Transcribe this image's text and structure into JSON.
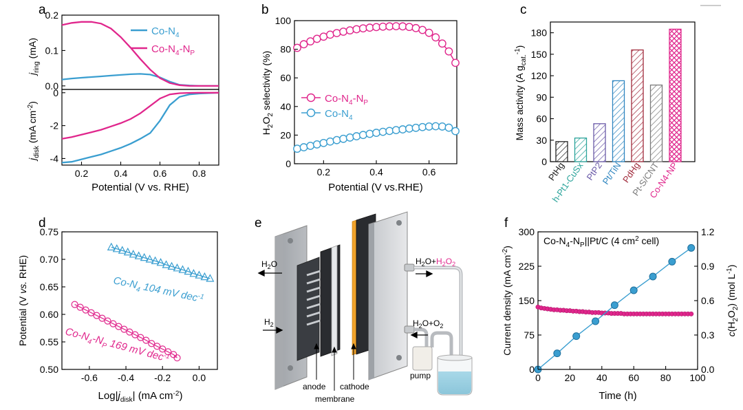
{
  "figure": {
    "panel_labels": [
      "a",
      "b",
      "c",
      "d",
      "e",
      "f"
    ]
  },
  "colors": {
    "co_n4": "#3a9ed0",
    "co_n4_np": "#e0268c",
    "axis": "#000000"
  },
  "chart_data": [
    {
      "id": "a-top",
      "type": "line",
      "ylabel": "j_ring (mA)",
      "ylim": [
        -0.01,
        0.2
      ],
      "xlim": [
        0.1,
        0.9
      ],
      "yticks": [
        0.0,
        0.1,
        0.2
      ],
      "legend": {
        "placement": "top-right"
      },
      "series": [
        {
          "name": "Co-N4",
          "color": "#3a9ed0",
          "x": [
            0.1,
            0.15,
            0.2,
            0.25,
            0.3,
            0.35,
            0.4,
            0.45,
            0.5,
            0.55,
            0.6,
            0.65,
            0.7,
            0.75,
            0.8,
            0.85,
            0.9
          ],
          "y": [
            0.018,
            0.021,
            0.023,
            0.025,
            0.027,
            0.029,
            0.031,
            0.033,
            0.034,
            0.032,
            0.024,
            0.012,
            0.003,
            0.001,
            0.0,
            0.0,
            0.0
          ]
        },
        {
          "name": "Co-N4-NP",
          "color": "#e0268c",
          "x": [
            0.1,
            0.15,
            0.2,
            0.25,
            0.3,
            0.35,
            0.4,
            0.45,
            0.5,
            0.55,
            0.6,
            0.65,
            0.7,
            0.75,
            0.8,
            0.85,
            0.9
          ],
          "y": [
            0.172,
            0.178,
            0.181,
            0.181,
            0.176,
            0.162,
            0.138,
            0.108,
            0.076,
            0.046,
            0.022,
            0.008,
            0.002,
            0.0,
            0.0,
            0.0,
            0.0
          ]
        }
      ]
    },
    {
      "id": "a-bottom",
      "type": "line",
      "ylabel": "j_disk (mA cm-2)",
      "xlabel": "Potential (V vs. RHE)",
      "ylim": [
        -4.4,
        0.2
      ],
      "xlim": [
        0.1,
        0.9
      ],
      "xticks": [
        0.2,
        0.4,
        0.6,
        0.8
      ],
      "yticks": [
        0,
        -2,
        -4
      ],
      "series": [
        {
          "name": "Co-N4",
          "color": "#3a9ed0",
          "x": [
            0.1,
            0.15,
            0.2,
            0.25,
            0.3,
            0.35,
            0.4,
            0.45,
            0.5,
            0.55,
            0.6,
            0.65,
            0.7,
            0.75,
            0.8,
            0.85,
            0.9
          ],
          "y": [
            -4.25,
            -4.2,
            -4.05,
            -3.9,
            -3.75,
            -3.55,
            -3.35,
            -3.1,
            -2.8,
            -2.45,
            -1.7,
            -0.75,
            -0.25,
            -0.1,
            -0.05,
            -0.02,
            0.0
          ]
        },
        {
          "name": "Co-N4-NP",
          "color": "#e0268c",
          "x": [
            0.1,
            0.15,
            0.2,
            0.25,
            0.3,
            0.35,
            0.4,
            0.45,
            0.5,
            0.55,
            0.6,
            0.65,
            0.7,
            0.75,
            0.8,
            0.85,
            0.9
          ],
          "y": [
            -2.8,
            -2.7,
            -2.55,
            -2.4,
            -2.25,
            -2.05,
            -1.85,
            -1.6,
            -1.25,
            -0.8,
            -0.35,
            -0.1,
            -0.03,
            -0.01,
            0.0,
            0.0,
            0.0
          ]
        }
      ]
    },
    {
      "id": "b",
      "type": "scatter",
      "ylabel": "H2O2 selectivity (%)",
      "xlabel": "Potential (V vs.RHE)",
      "xlim": [
        0.1,
        0.7
      ],
      "ylim": [
        0,
        100
      ],
      "xticks": [
        0.2,
        0.4,
        0.6
      ],
      "yticks": [
        0,
        20,
        40,
        60,
        80,
        100
      ],
      "legend": {
        "placement": "center-left"
      },
      "series": [
        {
          "name": "Co-N4-NP",
          "color": "#e0268c",
          "x": [
            0.1,
            0.125,
            0.15,
            0.175,
            0.2,
            0.225,
            0.25,
            0.275,
            0.3,
            0.325,
            0.35,
            0.375,
            0.4,
            0.425,
            0.45,
            0.475,
            0.5,
            0.525,
            0.55,
            0.575,
            0.6,
            0.625,
            0.65,
            0.675,
            0.7
          ],
          "y": [
            81,
            83.5,
            85.5,
            87.3,
            88.8,
            90.2,
            91.3,
            92.3,
            93.2,
            94,
            94.6,
            95.1,
            95.5,
            95.8,
            96,
            96.1,
            96,
            95.6,
            94.8,
            93.5,
            91.5,
            88.3,
            84,
            78.5,
            70.5
          ]
        },
        {
          "name": "Co-N4",
          "color": "#3a9ed0",
          "x": [
            0.1,
            0.125,
            0.15,
            0.175,
            0.2,
            0.225,
            0.25,
            0.275,
            0.3,
            0.325,
            0.35,
            0.375,
            0.4,
            0.425,
            0.45,
            0.475,
            0.5,
            0.525,
            0.55,
            0.575,
            0.6,
            0.625,
            0.65,
            0.675,
            0.7
          ],
          "y": [
            10.5,
            11.5,
            12.5,
            13.5,
            14.5,
            15.5,
            16.5,
            17.4,
            18.3,
            19.2,
            20.1,
            20.9,
            21.6,
            22.3,
            22.9,
            23.5,
            24,
            24.6,
            25.1,
            25.6,
            26,
            26.2,
            26,
            25.2,
            22.8
          ]
        }
      ]
    },
    {
      "id": "c",
      "type": "bar",
      "ylabel": "Mass activity (A g_cat.-1)",
      "ylim": [
        0,
        195
      ],
      "yticks": [
        0,
        30,
        60,
        90,
        120,
        150,
        180
      ],
      "categories": [
        "PtHg",
        "h-Pt1-CuSx",
        "PtP2",
        "Pt/TiN",
        "PdHg",
        "Pt-S/CNT",
        "Co-N4-NP"
      ],
      "values": [
        28,
        33,
        53,
        113,
        156,
        107,
        185
      ],
      "colors": [
        "#222222",
        "#2aa39a",
        "#6a5aa8",
        "#2f86c0",
        "#a12b3c",
        "#7a7a7a",
        "#e0268c"
      ],
      "patterns": [
        "hatch",
        "hatch",
        "hatch",
        "hatch",
        "hatch",
        "hatch",
        "crosshatch"
      ]
    },
    {
      "id": "d",
      "type": "scatter",
      "ylabel": "Potential (V vs. RHE)",
      "xlabel": "Log|j_disk| (mA cm-2)",
      "xlim": [
        -0.75,
        0.1
      ],
      "ylim": [
        0.5,
        0.75
      ],
      "xticks": [
        -0.6,
        -0.4,
        -0.2,
        0.0
      ],
      "yticks": [
        0.5,
        0.55,
        0.6,
        0.65,
        0.7,
        0.75
      ],
      "series": [
        {
          "name": "Co-N4",
          "annotation": "104 mV dec-1",
          "color": "#3a9ed0",
          "marker": "triangle",
          "x": [
            -0.48,
            -0.45,
            -0.42,
            -0.39,
            -0.36,
            -0.33,
            -0.3,
            -0.27,
            -0.24,
            -0.21,
            -0.18,
            -0.15,
            -0.12,
            -0.09,
            -0.06,
            -0.03,
            0.0,
            0.03,
            0.06
          ],
          "y": [
            0.722,
            0.719,
            0.716,
            0.713,
            0.709,
            0.706,
            0.703,
            0.7,
            0.697,
            0.694,
            0.69,
            0.687,
            0.684,
            0.681,
            0.678,
            0.674,
            0.671,
            0.668,
            0.665
          ]
        },
        {
          "name": "Co-N4-NP",
          "annotation": "169 mV dec-1",
          "color": "#e0268c",
          "marker": "circle",
          "x": [
            -0.68,
            -0.65,
            -0.62,
            -0.59,
            -0.56,
            -0.53,
            -0.5,
            -0.47,
            -0.44,
            -0.41,
            -0.38,
            -0.35,
            -0.32,
            -0.29,
            -0.26,
            -0.23,
            -0.2,
            -0.17,
            -0.14,
            -0.12
          ],
          "y": [
            0.618,
            0.613,
            0.608,
            0.603,
            0.598,
            0.593,
            0.588,
            0.583,
            0.578,
            0.573,
            0.568,
            0.563,
            0.558,
            0.553,
            0.547,
            0.542,
            0.537,
            0.532,
            0.527,
            0.521
          ]
        }
      ]
    },
    {
      "id": "f",
      "type": "scatter",
      "title": "Co-N4-NP||Pt/C (4 cm2 cell)",
      "xlabel": "Time (h)",
      "ylabel": "Current density (mA cm-2)",
      "ylabel_right": "c(H2O2) (mol L-1)",
      "xlim": [
        0,
        100
      ],
      "ylim": [
        0,
        300
      ],
      "ylim_right": [
        0,
        1.2
      ],
      "xticks": [
        0,
        20,
        40,
        60,
        80,
        100
      ],
      "yticks": [
        0,
        75,
        150,
        225,
        300
      ],
      "yticks_right": [
        0.0,
        0.3,
        0.6,
        0.9,
        1.2
      ],
      "series": [
        {
          "name": "current density",
          "axis": "left",
          "color": "#e0268c",
          "x": [
            0,
            2,
            4,
            6,
            8,
            10,
            12,
            14,
            16,
            18,
            20,
            22,
            24,
            26,
            28,
            30,
            32,
            34,
            36,
            38,
            40,
            42,
            44,
            46,
            48,
            50,
            52,
            54,
            56,
            58,
            60,
            62,
            64,
            66,
            68,
            70,
            72,
            74,
            76,
            78,
            80,
            82,
            84,
            86,
            88,
            90,
            92,
            94,
            96
          ],
          "y": [
            136,
            134,
            133,
            132,
            131,
            130,
            130,
            129,
            129,
            128,
            128,
            127,
            127,
            126,
            126,
            125,
            125,
            124,
            124,
            124,
            123,
            123,
            123,
            122,
            122,
            122,
            122,
            121,
            121,
            121,
            121,
            121,
            121,
            121,
            121,
            121,
            121,
            121,
            121,
            121,
            121,
            121,
            121,
            121,
            121,
            121,
            121,
            121,
            121
          ]
        },
        {
          "name": "c(H2O2)",
          "axis": "right",
          "color": "#3a9ed0",
          "x": [
            0,
            12,
            24,
            36,
            48,
            60,
            72,
            84,
            96
          ],
          "y": [
            0.0,
            0.14,
            0.29,
            0.42,
            0.56,
            0.69,
            0.81,
            0.94,
            1.06
          ]
        }
      ]
    }
  ],
  "diagram_e": {
    "labels": {
      "h2o_out": "H2O",
      "h2_in": "H2",
      "h2o_h2o2": "H2O+H2O2",
      "h2o_o2": "H2O+O2",
      "pump": "pump",
      "anode": "anode",
      "membrane": "membrane",
      "cathode": "cathode"
    }
  }
}
